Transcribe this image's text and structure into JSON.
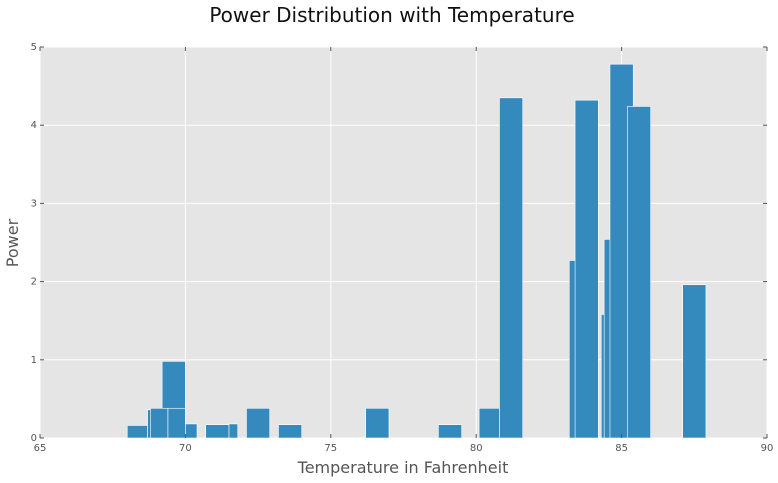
{
  "chart_data": {
    "type": "bar",
    "title": "Power Distribution with Temperature",
    "xlabel": "Temperature in Fahrenheit",
    "ylabel": "Power",
    "xlim": [
      65,
      90
    ],
    "ylim": [
      0,
      5
    ],
    "xticks": [
      "65",
      "70",
      "75",
      "80",
      "85",
      "90"
    ],
    "yticks": [
      "0",
      "1",
      "2",
      "3",
      "4",
      "5"
    ],
    "grid": true,
    "bar_color": "#348ABD",
    "plot_background": "#E5E5E5",
    "bars": [
      {
        "x0": 68.0,
        "x1": 68.7,
        "value": 0.16
      },
      {
        "x0": 68.7,
        "x1": 69.3,
        "value": 0.36
      },
      {
        "x0": 69.3,
        "x1": 69.6,
        "value": 0.67
      },
      {
        "x0": 69.2,
        "x1": 70.0,
        "value": 0.98
      },
      {
        "x0": 68.8,
        "x1": 69.4,
        "value": 0.38
      },
      {
        "x0": 69.4,
        "x1": 70.0,
        "value": 0.38
      },
      {
        "x0": 70.0,
        "x1": 70.4,
        "value": 0.18
      },
      {
        "x0": 70.7,
        "x1": 71.5,
        "value": 0.17
      },
      {
        "x0": 71.5,
        "x1": 71.8,
        "value": 0.18
      },
      {
        "x0": 72.1,
        "x1": 72.9,
        "value": 0.38
      },
      {
        "x0": 73.2,
        "x1": 74.0,
        "value": 0.17
      },
      {
        "x0": 76.2,
        "x1": 77.0,
        "value": 0.38
      },
      {
        "x0": 78.7,
        "x1": 79.5,
        "value": 0.17
      },
      {
        "x0": 80.1,
        "x1": 80.8,
        "value": 0.38
      },
      {
        "x0": 80.8,
        "x1": 81.6,
        "value": 4.35
      },
      {
        "x0": 83.2,
        "x1": 84.0,
        "value": 2.27
      },
      {
        "x0": 83.4,
        "x1": 84.2,
        "value": 4.32
      },
      {
        "x0": 84.3,
        "x1": 84.6,
        "value": 1.58
      },
      {
        "x0": 84.4,
        "x1": 85.2,
        "value": 2.54
      },
      {
        "x0": 84.6,
        "x1": 85.4,
        "value": 4.78
      },
      {
        "x0": 85.2,
        "x1": 86.0,
        "value": 4.24
      },
      {
        "x0": 87.1,
        "x1": 87.9,
        "value": 1.96
      }
    ]
  }
}
